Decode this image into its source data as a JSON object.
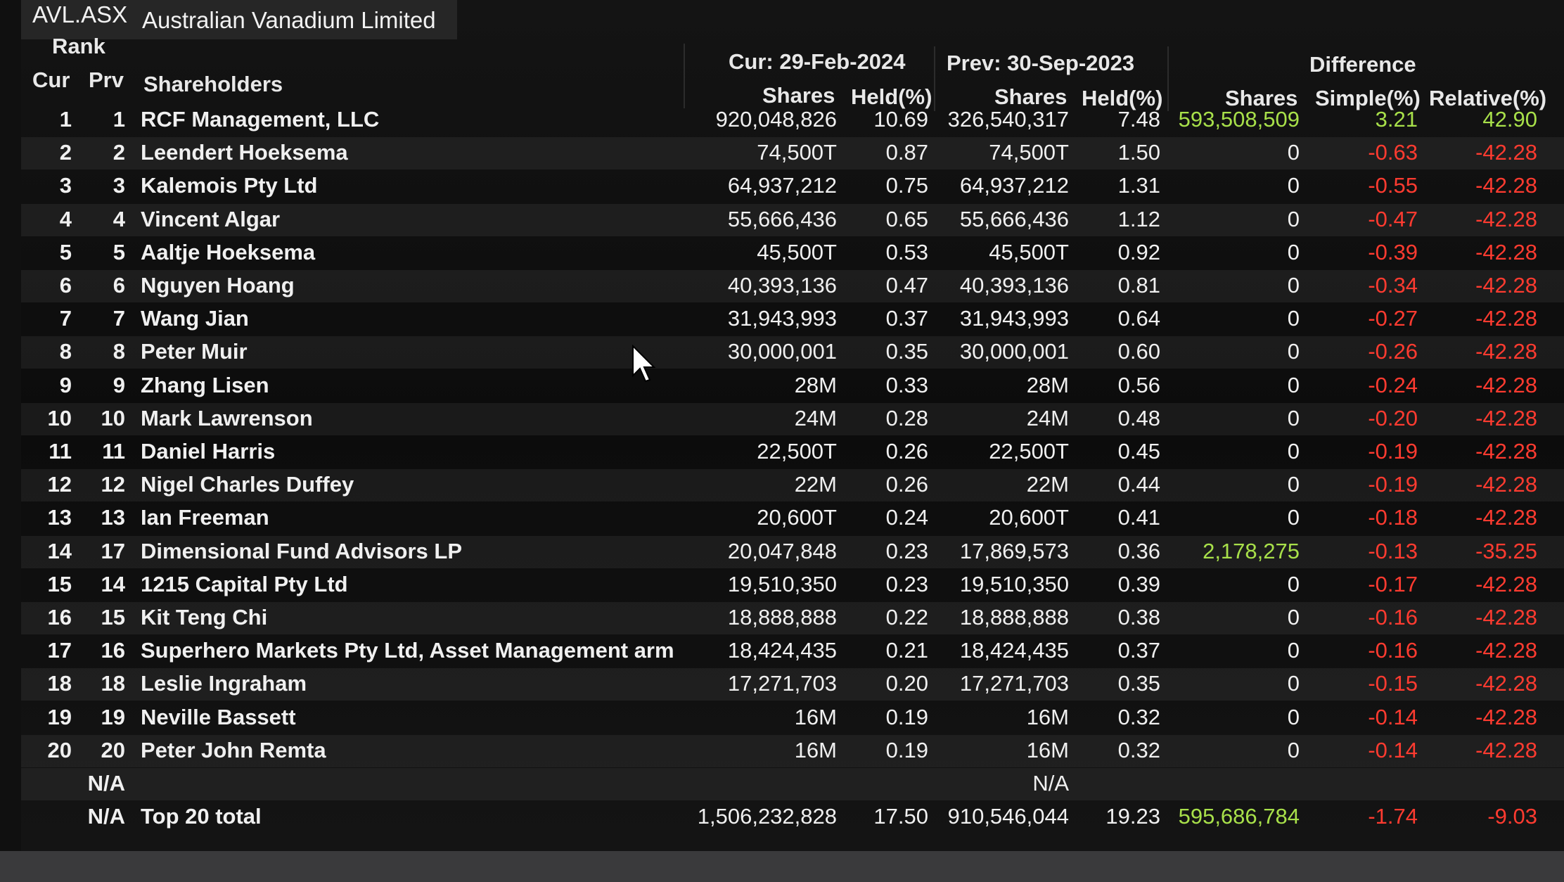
{
  "header": {
    "ticker": "AVL.ASX",
    "company": "Australian Vanadium Limited"
  },
  "columns": {
    "rank": "Rank",
    "cur": "Cur",
    "prv": "Prv",
    "shareholders": "Shareholders",
    "cur_group": "Cur: 29-Feb-2024",
    "prev_group": "Prev: 30-Sep-2023",
    "diff_group": "Difference",
    "shares": "Shares",
    "held": "Held(%)",
    "simple": "Simple(%)",
    "relative": "Relative(%)"
  },
  "colors": {
    "positive": "#a8e04a",
    "negative": "#ff3b30",
    "text": "#f0f0f0",
    "background": "#0c0c0c"
  },
  "rows": [
    {
      "cur": "1",
      "prv": "1",
      "name": "RCF Management, LLC",
      "cur_shares": "920,048,826",
      "cur_held": "10.69",
      "prev_shares": "326,540,317",
      "prev_held": "7.48",
      "diff_shares": "593,508,509",
      "simple": "3.21",
      "relative": "42.90"
    },
    {
      "cur": "2",
      "prv": "2",
      "name": "Leendert Hoeksema",
      "cur_shares": "74,500T",
      "cur_held": "0.87",
      "prev_shares": "74,500T",
      "prev_held": "1.50",
      "diff_shares": "0",
      "simple": "-0.63",
      "relative": "-42.28"
    },
    {
      "cur": "3",
      "prv": "3",
      "name": "Kalemois Pty Ltd",
      "cur_shares": "64,937,212",
      "cur_held": "0.75",
      "prev_shares": "64,937,212",
      "prev_held": "1.31",
      "diff_shares": "0",
      "simple": "-0.55",
      "relative": "-42.28"
    },
    {
      "cur": "4",
      "prv": "4",
      "name": "Vincent Algar",
      "cur_shares": "55,666,436",
      "cur_held": "0.65",
      "prev_shares": "55,666,436",
      "prev_held": "1.12",
      "diff_shares": "0",
      "simple": "-0.47",
      "relative": "-42.28"
    },
    {
      "cur": "5",
      "prv": "5",
      "name": "Aaltje Hoeksema",
      "cur_shares": "45,500T",
      "cur_held": "0.53",
      "prev_shares": "45,500T",
      "prev_held": "0.92",
      "diff_shares": "0",
      "simple": "-0.39",
      "relative": "-42.28"
    },
    {
      "cur": "6",
      "prv": "6",
      "name": "Nguyen Hoang",
      "cur_shares": "40,393,136",
      "cur_held": "0.47",
      "prev_shares": "40,393,136",
      "prev_held": "0.81",
      "diff_shares": "0",
      "simple": "-0.34",
      "relative": "-42.28"
    },
    {
      "cur": "7",
      "prv": "7",
      "name": "Wang Jian",
      "cur_shares": "31,943,993",
      "cur_held": "0.37",
      "prev_shares": "31,943,993",
      "prev_held": "0.64",
      "diff_shares": "0",
      "simple": "-0.27",
      "relative": "-42.28"
    },
    {
      "cur": "8",
      "prv": "8",
      "name": "Peter Muir",
      "cur_shares": "30,000,001",
      "cur_held": "0.35",
      "prev_shares": "30,000,001",
      "prev_held": "0.60",
      "diff_shares": "0",
      "simple": "-0.26",
      "relative": "-42.28"
    },
    {
      "cur": "9",
      "prv": "9",
      "name": "Zhang Lisen",
      "cur_shares": "28M",
      "cur_held": "0.33",
      "prev_shares": "28M",
      "prev_held": "0.56",
      "diff_shares": "0",
      "simple": "-0.24",
      "relative": "-42.28"
    },
    {
      "cur": "10",
      "prv": "10",
      "name": "Mark Lawrenson",
      "cur_shares": "24M",
      "cur_held": "0.28",
      "prev_shares": "24M",
      "prev_held": "0.48",
      "diff_shares": "0",
      "simple": "-0.20",
      "relative": "-42.28"
    },
    {
      "cur": "11",
      "prv": "11",
      "name": "Daniel Harris",
      "cur_shares": "22,500T",
      "cur_held": "0.26",
      "prev_shares": "22,500T",
      "prev_held": "0.45",
      "diff_shares": "0",
      "simple": "-0.19",
      "relative": "-42.28"
    },
    {
      "cur": "12",
      "prv": "12",
      "name": "Nigel Charles Duffey",
      "cur_shares": "22M",
      "cur_held": "0.26",
      "prev_shares": "22M",
      "prev_held": "0.44",
      "diff_shares": "0",
      "simple": "-0.19",
      "relative": "-42.28"
    },
    {
      "cur": "13",
      "prv": "13",
      "name": "Ian Freeman",
      "cur_shares": "20,600T",
      "cur_held": "0.24",
      "prev_shares": "20,600T",
      "prev_held": "0.41",
      "diff_shares": "0",
      "simple": "-0.18",
      "relative": "-42.28"
    },
    {
      "cur": "14",
      "prv": "17",
      "name": "Dimensional Fund Advisors LP",
      "cur_shares": "20,047,848",
      "cur_held": "0.23",
      "prev_shares": "17,869,573",
      "prev_held": "0.36",
      "diff_shares": "2,178,275",
      "simple": "-0.13",
      "relative": "-35.25"
    },
    {
      "cur": "15",
      "prv": "14",
      "name": "1215 Capital Pty Ltd",
      "cur_shares": "19,510,350",
      "cur_held": "0.23",
      "prev_shares": "19,510,350",
      "prev_held": "0.39",
      "diff_shares": "0",
      "simple": "-0.17",
      "relative": "-42.28"
    },
    {
      "cur": "16",
      "prv": "15",
      "name": "Kit Teng Chi",
      "cur_shares": "18,888,888",
      "cur_held": "0.22",
      "prev_shares": "18,888,888",
      "prev_held": "0.38",
      "diff_shares": "0",
      "simple": "-0.16",
      "relative": "-42.28"
    },
    {
      "cur": "17",
      "prv": "16",
      "name": "Superhero Markets Pty Ltd, Asset Management arm",
      "cur_shares": "18,424,435",
      "cur_held": "0.21",
      "prev_shares": "18,424,435",
      "prev_held": "0.37",
      "diff_shares": "0",
      "simple": "-0.16",
      "relative": "-42.28"
    },
    {
      "cur": "18",
      "prv": "18",
      "name": "Leslie Ingraham",
      "cur_shares": "17,271,703",
      "cur_held": "0.20",
      "prev_shares": "17,271,703",
      "prev_held": "0.35",
      "diff_shares": "0",
      "simple": "-0.15",
      "relative": "-42.28"
    },
    {
      "cur": "19",
      "prv": "19",
      "name": "Neville Bassett",
      "cur_shares": "16M",
      "cur_held": "0.19",
      "prev_shares": "16M",
      "prev_held": "0.32",
      "diff_shares": "0",
      "simple": "-0.14",
      "relative": "-42.28"
    },
    {
      "cur": "20",
      "prv": "20",
      "name": "Peter John Remta",
      "cur_shares": "16M",
      "cur_held": "0.19",
      "prev_shares": "16M",
      "prev_held": "0.32",
      "diff_shares": "0",
      "simple": "-0.14",
      "relative": "-42.28"
    }
  ],
  "na_row": {
    "prv": "N/A",
    "prev_shares": "N/A"
  },
  "total_row": {
    "prv": "N/A",
    "name": "Top 20 total",
    "cur_shares": "1,506,232,828",
    "cur_held": "17.50",
    "prev_shares": "910,546,044",
    "prev_held": "19.23",
    "diff_shares": "595,686,784",
    "simple": "-1.74",
    "relative": "-9.03"
  }
}
